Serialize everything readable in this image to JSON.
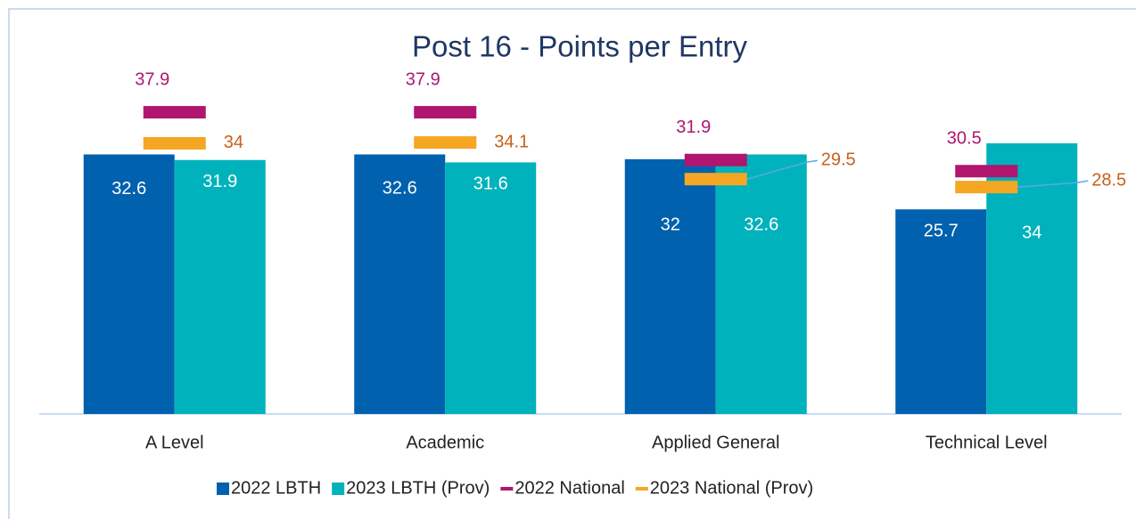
{
  "chart_data": {
    "type": "bar",
    "title": "Post 16 - Points per Entry",
    "categories": [
      "A Level",
      "Academic",
      "Applied General",
      "Technical Level"
    ],
    "series": [
      {
        "name": "2022 LBTH",
        "color": "#0061ae",
        "kind": "bar",
        "values": [
          32.6,
          32.6,
          32,
          25.7
        ]
      },
      {
        "name": "2023 LBTH (Prov)",
        "color": "#00b2bb",
        "kind": "bar",
        "values": [
          31.9,
          31.6,
          32.6,
          34
        ]
      },
      {
        "name": "2022 National",
        "color": "#b0166e",
        "kind": "marker",
        "values": [
          37.9,
          37.9,
          31.9,
          30.5
        ]
      },
      {
        "name": "2023 National (Prov)",
        "color": "#f5a623",
        "kind": "marker",
        "values": [
          34,
          34.1,
          29.5,
          28.5
        ]
      }
    ],
    "ylim": [
      0,
      52
    ]
  }
}
